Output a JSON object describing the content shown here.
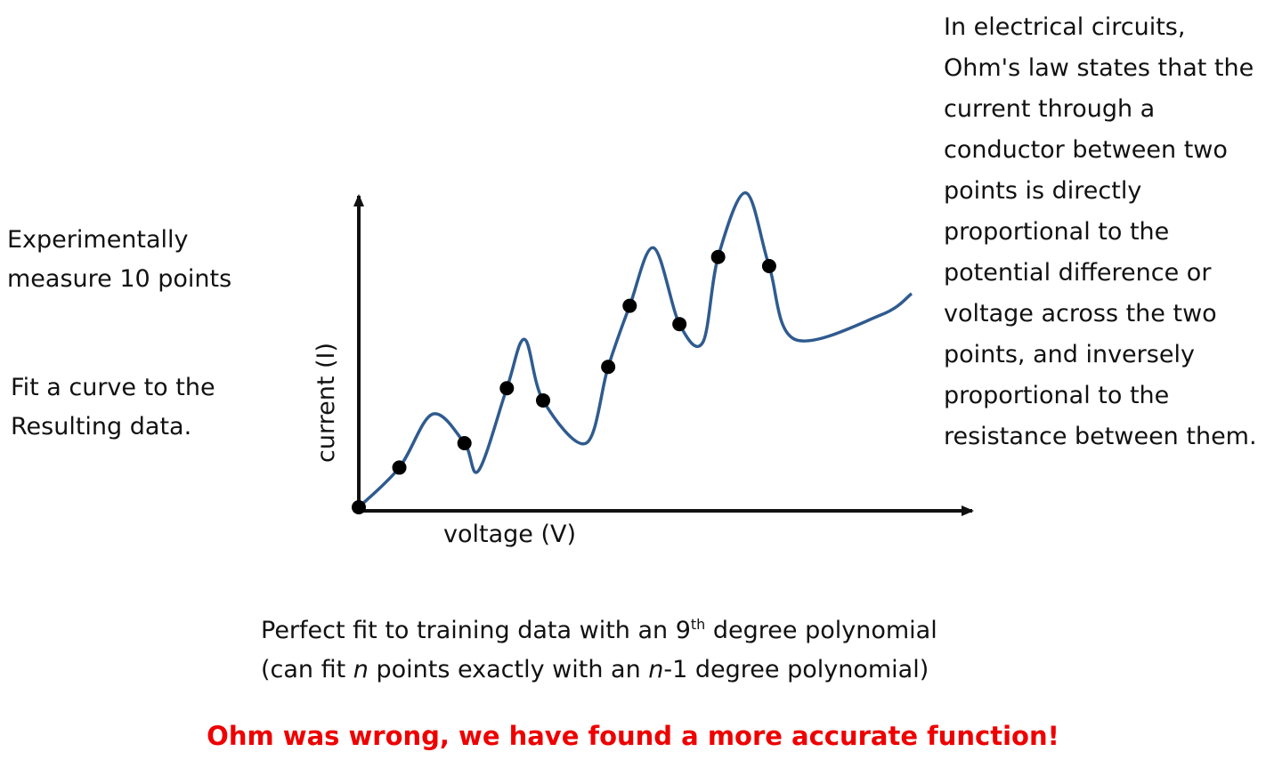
{
  "left_notes": {
    "measure": "Experimentally measure 10 points",
    "fit": "Fit a curve to the Resulting data."
  },
  "right_note": "In electrical circuits, Ohm's law states that the current through a conductor between two points is directly proportional to the potential difference or voltage across the two points, and inversely proportional to the resistance between them.",
  "caption": {
    "line1_before": "Perfect fit to training data with an 9",
    "line1_sup": "th",
    "line1_after": " degree polynomial",
    "line2_a": "(can fit ",
    "line2_n1": "n",
    "line2_b": " points exactly with an ",
    "line2_n2": "n",
    "line2_c": "-1 degree polynomial)"
  },
  "conclusion": "Ohm was wrong, we have found a more accurate function!",
  "chart_data": {
    "type": "scatter",
    "xlabel": "voltage (V)",
    "ylabel": "current (I)",
    "xlim": [
      0,
      10
    ],
    "ylim": [
      0,
      10
    ],
    "points": [
      {
        "x": 0.0,
        "y": 0.0
      },
      {
        "x": 0.66,
        "y": 1.3
      },
      {
        "x": 1.72,
        "y": 2.1
      },
      {
        "x": 2.41,
        "y": 3.9
      },
      {
        "x": 3.0,
        "y": 3.5
      },
      {
        "x": 4.06,
        "y": 4.6
      },
      {
        "x": 4.41,
        "y": 6.6
      },
      {
        "x": 5.22,
        "y": 6.0
      },
      {
        "x": 5.85,
        "y": 8.2
      },
      {
        "x": 6.68,
        "y": 7.9
      }
    ],
    "curve": [
      {
        "x": 0.0,
        "y": 0.0
      },
      {
        "x": 0.66,
        "y": 1.3
      },
      {
        "x": 1.2,
        "y": 3.05
      },
      {
        "x": 1.72,
        "y": 2.1
      },
      {
        "x": 1.95,
        "y": 1.2
      },
      {
        "x": 2.41,
        "y": 3.9
      },
      {
        "x": 2.7,
        "y": 5.5
      },
      {
        "x": 3.0,
        "y": 3.5
      },
      {
        "x": 3.7,
        "y": 2.1
      },
      {
        "x": 4.06,
        "y": 4.6
      },
      {
        "x": 4.41,
        "y": 6.6
      },
      {
        "x": 4.8,
        "y": 8.5
      },
      {
        "x": 5.22,
        "y": 6.0
      },
      {
        "x": 5.6,
        "y": 5.4
      },
      {
        "x": 5.85,
        "y": 8.2
      },
      {
        "x": 6.3,
        "y": 10.3
      },
      {
        "x": 6.68,
        "y": 7.9
      },
      {
        "x": 7.1,
        "y": 5.5
      },
      {
        "x": 8.5,
        "y": 6.3
      },
      {
        "x": 9.0,
        "y": 7.0
      }
    ],
    "point_color": "#000000",
    "curve_color": "#2f5b8f",
    "grid": false
  }
}
